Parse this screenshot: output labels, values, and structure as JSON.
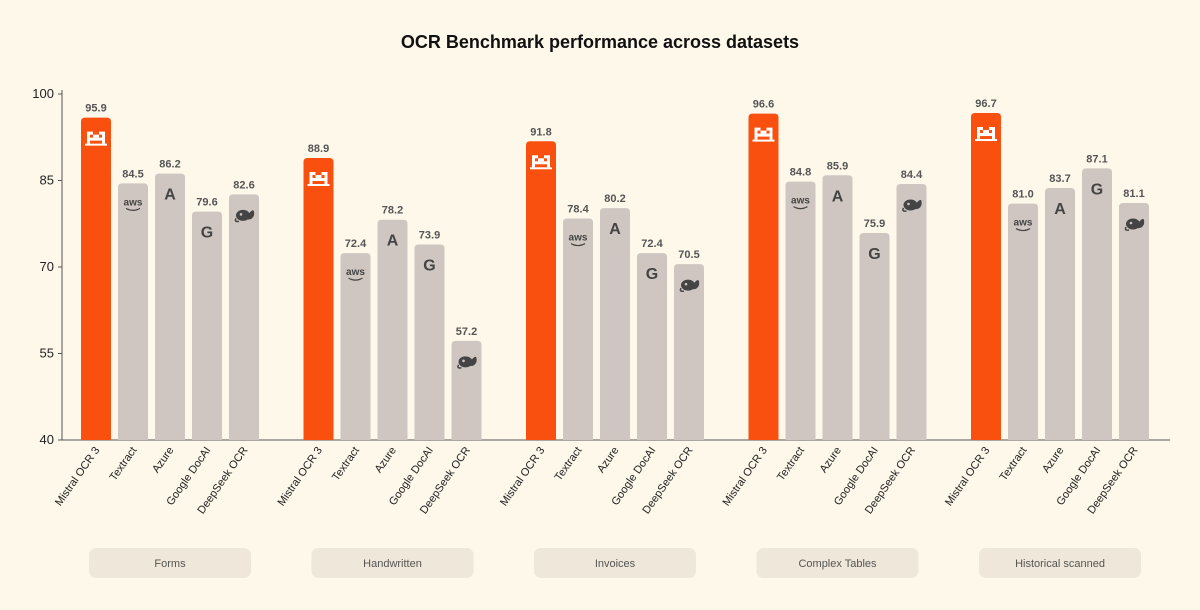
{
  "chart_data": {
    "type": "bar",
    "title": "OCR Benchmark performance across datasets",
    "ylim": [
      40,
      100
    ],
    "yticks": [
      40,
      55,
      70,
      85,
      100
    ],
    "grid": false,
    "models": [
      "Mistral OCR 3",
      "Textract",
      "Azure",
      "Google DocAI",
      "DeepSeek OCR"
    ],
    "model_icons": [
      "mistral-logo-icon",
      "aws-logo-icon",
      "azure-logo-icon",
      "google-logo-icon",
      "deepseek-logo-icon"
    ],
    "icon_text": [
      "",
      "aws",
      "A",
      "G",
      ""
    ],
    "highlight_color": "#fa500f",
    "bar_color": "#cfc6c1",
    "groups": [
      {
        "name": "Forms",
        "values": [
          95.9,
          84.5,
          86.2,
          79.6,
          82.6
        ]
      },
      {
        "name": "Handwritten",
        "values": [
          88.9,
          72.4,
          78.2,
          73.9,
          57.2
        ]
      },
      {
        "name": "Invoices",
        "values": [
          91.8,
          78.4,
          80.2,
          72.4,
          70.5
        ]
      },
      {
        "name": "Complex Tables",
        "values": [
          96.6,
          84.8,
          85.9,
          75.9,
          84.4
        ]
      },
      {
        "name": "Historical scanned",
        "values": [
          96.7,
          81.0,
          83.7,
          87.1,
          81.1
        ]
      }
    ]
  }
}
